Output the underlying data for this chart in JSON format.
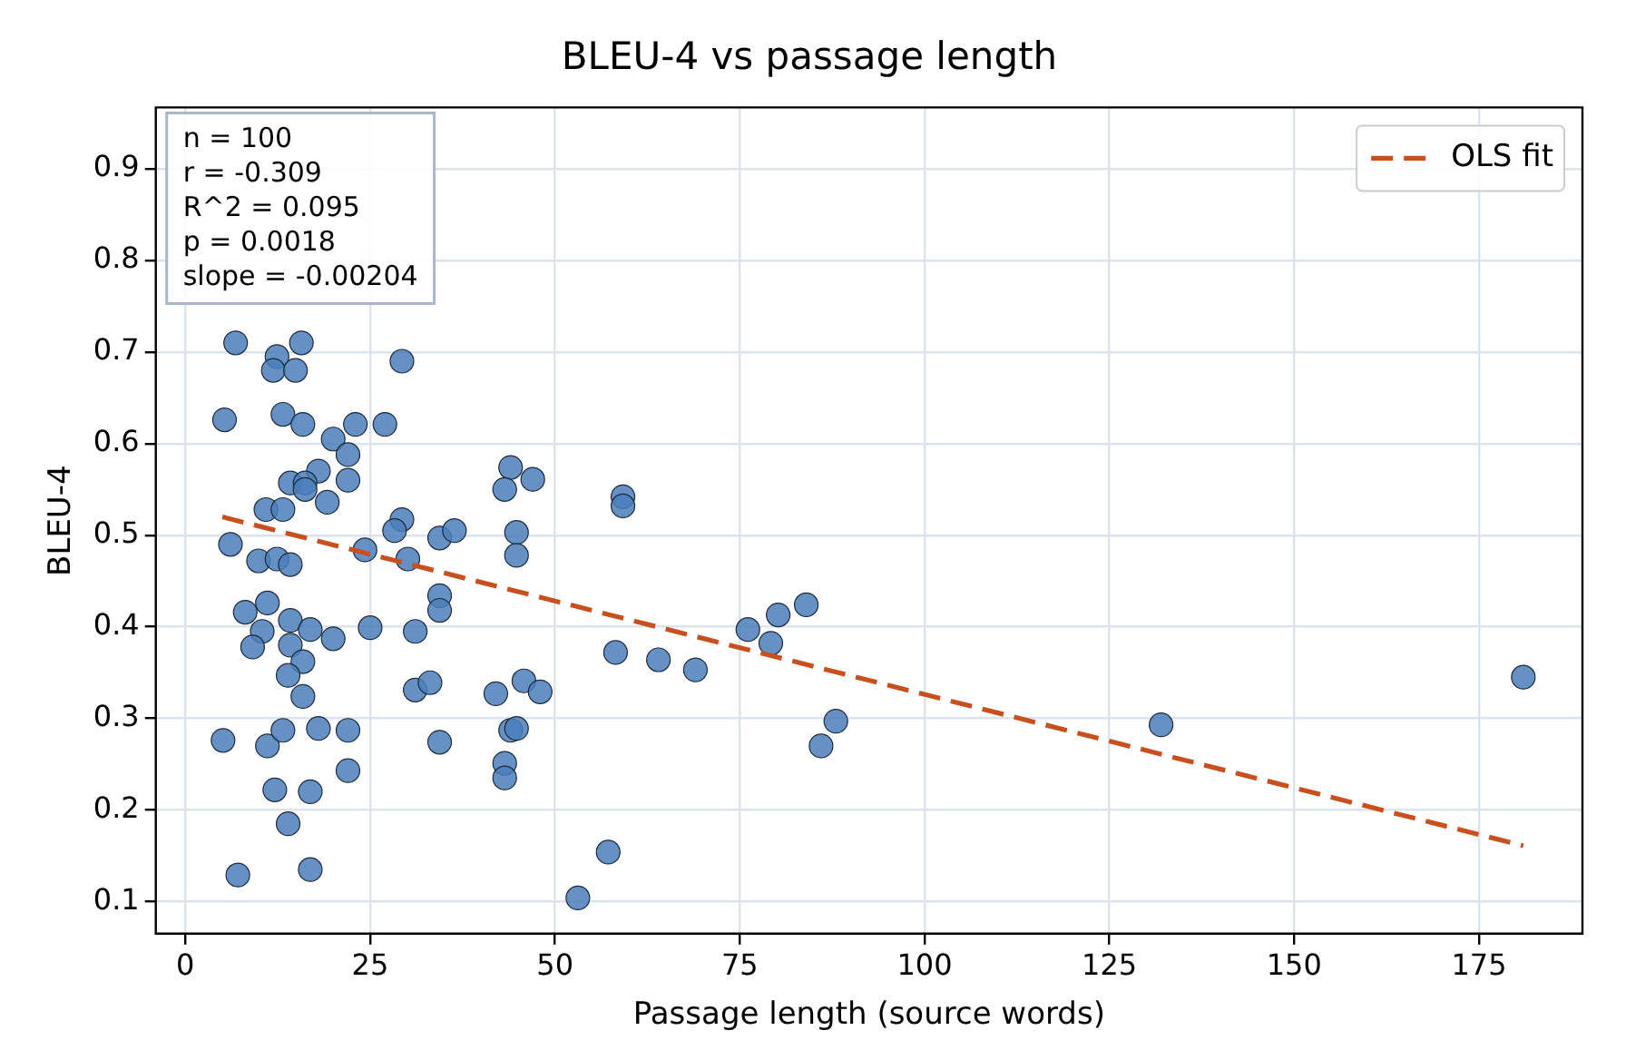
{
  "chart_data": {
    "type": "scatter",
    "title": "BLEU-4 vs passage length",
    "xlabel": "Passage length (source words)",
    "ylabel": "BLEU-4",
    "xlim": [
      -4,
      189
    ],
    "xticks": [
      0,
      25,
      50,
      75,
      100,
      125,
      150,
      175
    ],
    "ylim": [
      0.065,
      0.967
    ],
    "yticks": [
      0.1,
      0.2,
      0.3,
      0.4,
      0.5,
      0.6,
      0.7,
      0.8,
      0.9
    ],
    "grid": true,
    "legend": "top right",
    "marker": "circle",
    "annotations": [
      "n = 100",
      "r = -0.309",
      "R^2 = 0.095",
      "p = 0.0018",
      "slope = -0.00204"
    ],
    "series": [
      {
        "type": "scatter",
        "color": "#4a7ebb",
        "x": [
          6.8,
          15.7,
          12.4,
          11.9,
          14.9,
          29.3,
          5.3,
          13.2,
          15.9,
          23,
          27,
          20,
          22,
          22,
          18,
          14.2,
          16.2,
          16.2,
          19.2,
          10.9,
          13.2,
          44,
          43.2,
          29.3,
          6.1,
          9.9,
          12.4,
          14.2,
          24.3,
          28.3,
          30.1,
          34.4,
          36.4,
          44.8,
          44.8,
          8.1,
          11.1,
          14.2,
          10.4,
          9.1,
          16.9,
          20,
          14.2,
          15.9,
          13.9,
          15.9,
          25,
          31.1,
          34.4,
          34.4,
          31.1,
          33.1,
          42,
          45.8,
          5.1,
          11.1,
          13.2,
          18,
          22,
          22,
          12.1,
          16.9,
          13.9,
          7.1,
          16.9,
          34.4,
          44,
          43.2,
          43.2,
          47,
          59.2,
          59.2,
          58.2,
          64,
          69,
          48,
          44.8,
          57.2,
          53.1,
          76.1,
          80.2,
          84,
          79.2,
          88,
          86,
          132,
          181
        ],
        "values": [
          0.71,
          0.71,
          0.695,
          0.68,
          0.68,
          0.69,
          0.626,
          0.632,
          0.621,
          0.621,
          0.621,
          0.605,
          0.588,
          0.56,
          0.57,
          0.557,
          0.557,
          0.55,
          0.536,
          0.528,
          0.528,
          0.574,
          0.55,
          0.517,
          0.49,
          0.472,
          0.474,
          0.468,
          0.484,
          0.505,
          0.474,
          0.497,
          0.505,
          0.503,
          0.478,
          0.416,
          0.426,
          0.407,
          0.395,
          0.378,
          0.397,
          0.387,
          0.38,
          0.362,
          0.347,
          0.324,
          0.399,
          0.395,
          0.434,
          0.418,
          0.331,
          0.339,
          0.327,
          0.341,
          0.276,
          0.27,
          0.287,
          0.289,
          0.287,
          0.243,
          0.222,
          0.22,
          0.185,
          0.129,
          0.135,
          0.274,
          0.287,
          0.251,
          0.235,
          0.561,
          0.542,
          0.532,
          0.372,
          0.364,
          0.353,
          0.329,
          0.289,
          0.154,
          0.104,
          0.397,
          0.413,
          0.424,
          0.382,
          0.297,
          0.27,
          0.293,
          0.345
        ]
      },
      {
        "type": "line",
        "name": "OLS fit",
        "color": "#c8501e",
        "line_style": "dashed",
        "marker": "none",
        "x": [
          5,
          181
        ],
        "values": [
          0.52,
          0.161
        ]
      }
    ]
  }
}
